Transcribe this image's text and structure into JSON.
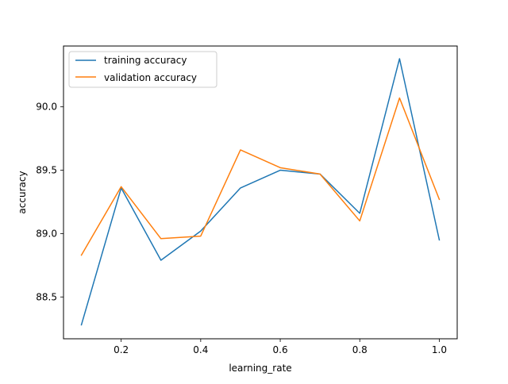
{
  "chart_data": {
    "type": "line",
    "x": [
      0.1,
      0.2,
      0.3,
      0.4,
      0.5,
      0.6,
      0.7,
      0.8,
      0.9,
      1.0
    ],
    "series": [
      {
        "name": "training accuracy",
        "color": "#1f77b4",
        "values": [
          88.28,
          89.36,
          88.79,
          89.02,
          89.36,
          89.5,
          89.47,
          89.16,
          90.38,
          88.95
        ]
      },
      {
        "name": "validation accuracy",
        "color": "#ff7f0e",
        "values": [
          88.83,
          89.37,
          88.96,
          88.98,
          89.66,
          89.52,
          89.47,
          89.1,
          90.07,
          89.27
        ]
      }
    ],
    "xlabel": "learning_rate",
    "ylabel": "accuracy",
    "xlim": [
      0.055,
      1.045
    ],
    "ylim": [
      88.17,
      90.48
    ],
    "xticks": [
      0.2,
      0.4,
      0.6,
      0.8,
      1.0
    ],
    "xtick_labels": [
      "0.2",
      "0.4",
      "0.6",
      "0.8",
      "1.0"
    ],
    "yticks": [
      88.5,
      89.0,
      89.5,
      90.0
    ],
    "ytick_labels": [
      "88.5",
      "89.0",
      "89.5",
      "90.0"
    ],
    "grid": false,
    "legend_position": "top-left"
  }
}
